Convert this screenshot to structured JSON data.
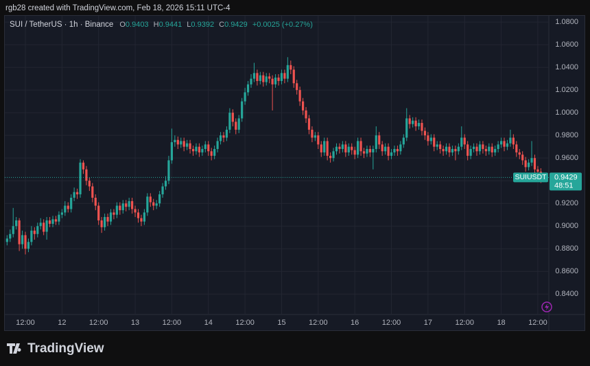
{
  "header": {
    "caption": "rgb28 created with TradingView.com, Feb 18, 2026 15:11 UTC-4"
  },
  "legend": {
    "symbol": "SUI / TetherUS · 1h · Binance",
    "ohlc": [
      {
        "label": "O",
        "value": 0.9403
      },
      {
        "label": "H",
        "value": 0.9441
      },
      {
        "label": "L",
        "value": 0.9392
      },
      {
        "label": "C",
        "value": 0.9429
      }
    ],
    "change": "+0.0025 (+0.27%)"
  },
  "chart_data": {
    "type": "candlestick",
    "categories": [
      null,
      null,
      null,
      null,
      null,
      null,
      "12:00",
      null,
      null,
      null,
      null,
      null,
      null,
      null,
      null,
      null,
      null,
      null,
      "12",
      null,
      null,
      null,
      null,
      null,
      null,
      null,
      null,
      null,
      null,
      null,
      "12:00",
      null,
      null,
      null,
      null,
      null,
      null,
      null,
      null,
      null,
      null,
      null,
      "13",
      null,
      null,
      null,
      null,
      null,
      null,
      null,
      null,
      null,
      null,
      null,
      "12:00",
      null,
      null,
      null,
      null,
      null,
      null,
      null,
      null,
      null,
      null,
      null,
      "14",
      null,
      null,
      null,
      null,
      null,
      null,
      null,
      null,
      null,
      null,
      null,
      "12:00",
      null,
      null,
      null,
      null,
      null,
      null,
      null,
      null,
      null,
      null,
      null,
      "15",
      null,
      null,
      null,
      null,
      null,
      null,
      null,
      null,
      null,
      null,
      null,
      "12:00",
      null,
      null,
      null,
      null,
      null,
      null,
      null,
      null,
      null,
      null,
      null,
      "16",
      null,
      null,
      null,
      null,
      null,
      null,
      null,
      null,
      null,
      null,
      null,
      "12:00",
      null,
      null,
      null,
      null,
      null,
      null,
      null,
      null,
      null,
      null,
      null,
      "17",
      null,
      null,
      null,
      null,
      null,
      null,
      null,
      null,
      null,
      null,
      null,
      "12:00",
      null,
      null,
      null,
      null,
      null,
      null,
      null,
      null,
      null,
      null,
      null,
      "18",
      null,
      null,
      null,
      null,
      null,
      null,
      null,
      null,
      null,
      null,
      null,
      "12:00",
      null,
      null
    ],
    "open": [
      0.886,
      0.889,
      0.893,
      0.9,
      0.905,
      0.884,
      0.892,
      0.88,
      0.886,
      0.896,
      0.893,
      0.9,
      0.903,
      0.895,
      0.905,
      0.902,
      0.906,
      0.904,
      0.91,
      0.912,
      0.918,
      0.915,
      0.925,
      0.93,
      0.928,
      0.956,
      0.95,
      0.94,
      0.935,
      0.925,
      0.918,
      0.905,
      0.899,
      0.908,
      0.904,
      0.912,
      0.91,
      0.918,
      0.914,
      0.92,
      0.917,
      0.922,
      0.915,
      0.912,
      0.907,
      0.904,
      0.912,
      0.926,
      0.921,
      0.918,
      0.92,
      0.928,
      0.935,
      0.94,
      0.958,
      0.974,
      0.976,
      0.972,
      0.975,
      0.97,
      0.973,
      0.968,
      0.966,
      0.97,
      0.965,
      0.968,
      0.972,
      0.966,
      0.962,
      0.968,
      0.975,
      0.98,
      0.978,
      0.985,
      1.0,
      0.992,
      0.985,
      0.995,
      1.01,
      1.018,
      1.025,
      1.03,
      1.035,
      1.028,
      1.033,
      1.027,
      1.032,
      1.03,
      1.025,
      1.031,
      1.028,
      1.035,
      1.03,
      1.042,
      1.038,
      1.026,
      1.02,
      1.01,
      1.002,
      0.995,
      0.985,
      0.978,
      0.98,
      0.972,
      0.965,
      0.975,
      0.962,
      0.96,
      0.966,
      0.97,
      0.968,
      0.972,
      0.965,
      0.97,
      0.967,
      0.963,
      0.975,
      0.966,
      0.964,
      0.968,
      0.965,
      0.968,
      0.98,
      0.972,
      0.966,
      0.97,
      0.962,
      0.965,
      0.968,
      0.966,
      0.972,
      0.978,
      0.995,
      0.99,
      0.993,
      0.988,
      0.991,
      0.984,
      0.98,
      0.975,
      0.978,
      0.97,
      0.972,
      0.968,
      0.966,
      0.97,
      0.965,
      0.968,
      0.966,
      0.97,
      0.978,
      0.972,
      0.962,
      0.968,
      0.97,
      0.966,
      0.972,
      0.968,
      0.966,
      0.97,
      0.965,
      0.968,
      0.972,
      0.975,
      0.97,
      0.973,
      0.978,
      0.972,
      0.965,
      0.963,
      0.958,
      0.952,
      0.956,
      0.96,
      0.95,
      0.948,
      0.9403
    ],
    "high": [
      0.892,
      0.897,
      0.916,
      0.908,
      0.907,
      0.896,
      0.895,
      0.889,
      0.9,
      0.899,
      0.903,
      0.907,
      0.906,
      0.908,
      0.908,
      0.909,
      0.909,
      0.913,
      0.915,
      0.922,
      0.921,
      0.928,
      0.934,
      0.933,
      0.959,
      0.958,
      0.953,
      0.943,
      0.938,
      0.928,
      0.921,
      0.908,
      0.911,
      0.911,
      0.915,
      0.915,
      0.921,
      0.921,
      0.923,
      0.923,
      0.925,
      0.925,
      0.918,
      0.915,
      0.91,
      0.915,
      0.929,
      0.929,
      0.924,
      0.923,
      0.931,
      0.938,
      0.944,
      0.962,
      0.986,
      0.98,
      0.979,
      0.978,
      0.978,
      0.976,
      0.976,
      0.971,
      0.973,
      0.973,
      0.971,
      0.975,
      0.975,
      0.969,
      0.971,
      0.978,
      0.983,
      0.983,
      0.988,
      1.004,
      1.003,
      0.995,
      0.998,
      1.013,
      1.022,
      1.028,
      1.034,
      1.044,
      1.038,
      1.036,
      1.036,
      1.035,
      1.035,
      1.033,
      1.034,
      1.034,
      1.038,
      1.038,
      1.049,
      1.046,
      1.041,
      1.029,
      1.023,
      1.013,
      1.005,
      0.998,
      0.988,
      0.983,
      0.983,
      0.975,
      0.978,
      0.978,
      0.965,
      0.969,
      0.973,
      0.973,
      0.975,
      0.975,
      0.973,
      0.973,
      0.97,
      0.978,
      0.978,
      0.969,
      0.971,
      0.971,
      0.971,
      0.988,
      0.983,
      0.975,
      0.973,
      0.973,
      0.968,
      0.971,
      0.971,
      0.975,
      0.981,
      1.004,
      0.998,
      0.996,
      0.996,
      0.994,
      0.994,
      0.987,
      0.983,
      0.981,
      0.981,
      0.975,
      0.975,
      0.971,
      0.973,
      0.973,
      0.971,
      0.971,
      0.973,
      0.988,
      0.981,
      0.975,
      0.971,
      0.973,
      0.973,
      0.975,
      0.975,
      0.971,
      0.973,
      0.973,
      0.971,
      0.975,
      0.978,
      0.978,
      0.976,
      0.985,
      0.981,
      0.975,
      0.968,
      0.966,
      0.961,
      0.959,
      0.975,
      0.963,
      0.953,
      0.951,
      0.9441
    ],
    "low": [
      0.883,
      0.886,
      0.89,
      0.897,
      0.878,
      0.88,
      0.875,
      0.877,
      0.883,
      0.888,
      0.89,
      0.897,
      0.892,
      0.888,
      0.899,
      0.899,
      0.901,
      0.901,
      0.907,
      0.909,
      0.912,
      0.912,
      0.922,
      0.924,
      0.925,
      0.946,
      0.936,
      0.931,
      0.921,
      0.914,
      0.901,
      0.894,
      0.896,
      0.9,
      0.901,
      0.906,
      0.907,
      0.91,
      0.911,
      0.913,
      0.914,
      0.911,
      0.908,
      0.903,
      0.9,
      0.901,
      0.909,
      0.917,
      0.914,
      0.915,
      0.917,
      0.925,
      0.932,
      0.937,
      0.955,
      0.97,
      0.968,
      0.969,
      0.966,
      0.967,
      0.964,
      0.962,
      0.963,
      0.961,
      0.962,
      0.965,
      0.962,
      0.958,
      0.959,
      0.965,
      0.972,
      0.974,
      0.975,
      0.982,
      0.988,
      0.981,
      0.982,
      0.992,
      1.007,
      1.015,
      1.022,
      1.027,
      1.024,
      1.025,
      1.023,
      1.024,
      1.026,
      1.002,
      1.022,
      1.024,
      1.025,
      1.026,
      1.027,
      1.034,
      1.022,
      1.016,
      1.006,
      0.998,
      0.991,
      0.981,
      0.974,
      0.975,
      0.968,
      0.961,
      0.962,
      0.958,
      0.956,
      0.957,
      0.963,
      0.964,
      0.965,
      0.961,
      0.962,
      0.963,
      0.959,
      0.96,
      0.962,
      0.96,
      0.961,
      0.961,
      0.95,
      0.965,
      0.968,
      0.962,
      0.963,
      0.958,
      0.959,
      0.962,
      0.962,
      0.963,
      0.969,
      0.975,
      0.986,
      0.987,
      0.984,
      0.985,
      0.98,
      0.976,
      0.971,
      0.972,
      0.966,
      0.967,
      0.964,
      0.962,
      0.963,
      0.961,
      0.962,
      0.958,
      0.963,
      0.967,
      0.968,
      0.958,
      0.959,
      0.965,
      0.962,
      0.963,
      0.964,
      0.962,
      0.963,
      0.961,
      0.962,
      0.965,
      0.969,
      0.966,
      0.967,
      0.97,
      0.968,
      0.961,
      0.959,
      0.954,
      0.948,
      0.949,
      0.953,
      0.946,
      0.944,
      0.938,
      0.9392
    ],
    "close": [
      0.889,
      0.893,
      0.9,
      0.905,
      0.884,
      0.892,
      0.88,
      0.886,
      0.896,
      0.893,
      0.9,
      0.903,
      0.895,
      0.905,
      0.902,
      0.906,
      0.904,
      0.91,
      0.912,
      0.918,
      0.915,
      0.925,
      0.93,
      0.928,
      0.956,
      0.95,
      0.94,
      0.935,
      0.925,
      0.918,
      0.905,
      0.899,
      0.908,
      0.904,
      0.912,
      0.91,
      0.918,
      0.914,
      0.92,
      0.917,
      0.922,
      0.915,
      0.912,
      0.907,
      0.904,
      0.912,
      0.926,
      0.921,
      0.918,
      0.92,
      0.928,
      0.935,
      0.94,
      0.958,
      0.974,
      0.976,
      0.972,
      0.975,
      0.97,
      0.973,
      0.968,
      0.966,
      0.97,
      0.965,
      0.968,
      0.972,
      0.966,
      0.962,
      0.968,
      0.975,
      0.98,
      0.978,
      0.985,
      1.0,
      0.992,
      0.985,
      0.995,
      1.01,
      1.018,
      1.025,
      1.03,
      1.035,
      1.028,
      1.033,
      1.027,
      1.032,
      1.03,
      1.025,
      1.031,
      1.028,
      1.035,
      1.03,
      1.042,
      1.038,
      1.026,
      1.02,
      1.01,
      1.002,
      0.995,
      0.985,
      0.978,
      0.98,
      0.972,
      0.965,
      0.975,
      0.962,
      0.96,
      0.966,
      0.97,
      0.968,
      0.972,
      0.965,
      0.97,
      0.967,
      0.963,
      0.975,
      0.966,
      0.964,
      0.968,
      0.965,
      0.968,
      0.98,
      0.972,
      0.966,
      0.97,
      0.962,
      0.965,
      0.968,
      0.966,
      0.972,
      0.978,
      0.995,
      0.99,
      0.993,
      0.988,
      0.991,
      0.984,
      0.98,
      0.975,
      0.978,
      0.97,
      0.972,
      0.968,
      0.966,
      0.97,
      0.965,
      0.968,
      0.966,
      0.97,
      0.978,
      0.972,
      0.962,
      0.968,
      0.97,
      0.966,
      0.972,
      0.968,
      0.966,
      0.97,
      0.965,
      0.968,
      0.972,
      0.975,
      0.97,
      0.973,
      0.978,
      0.972,
      0.965,
      0.963,
      0.958,
      0.952,
      0.956,
      0.96,
      0.95,
      0.948,
      0.9403,
      0.9429
    ],
    "up_color": "#26a69a",
    "down_color": "#ef5350",
    "ylim": [
      0.822,
      1.0855
    ],
    "yticks": [
      {
        "value": 0.84,
        "label": "0.8400"
      },
      {
        "value": 0.86,
        "label": "0.8600"
      },
      {
        "value": 0.88,
        "label": "0.8800"
      },
      {
        "value": 0.9,
        "label": "0.9000"
      },
      {
        "value": 0.92,
        "label": "0.9200"
      },
      {
        "value": 0.94,
        "label": "0.9400"
      },
      {
        "value": 0.96,
        "label": "0.9600"
      },
      {
        "value": 0.98,
        "label": "0.9800"
      },
      {
        "value": 1.0,
        "label": "1.0000"
      },
      {
        "value": 1.02,
        "label": "1.0200"
      },
      {
        "value": 1.04,
        "label": "1.0400"
      },
      {
        "value": 1.06,
        "label": "1.0600"
      },
      {
        "value": 1.08,
        "label": "1.0800"
      }
    ],
    "grid": true,
    "last_price": 0.9429,
    "price_tag": {
      "symbol": "SUIUSDT",
      "countdown": "48:51"
    }
  },
  "footer": {
    "brand": "TradingView"
  }
}
